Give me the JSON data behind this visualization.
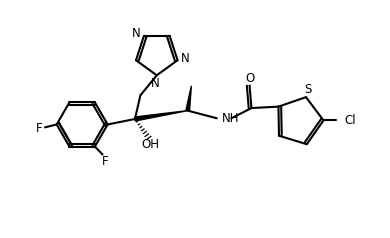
{
  "background": "#ffffff",
  "line_color": "#000000",
  "lw": 1.5,
  "fs": 8.5,
  "figsize": [
    3.9,
    2.38
  ],
  "dpi": 100,
  "xlim": [
    0,
    10
  ],
  "ylim": [
    0,
    6.5
  ]
}
